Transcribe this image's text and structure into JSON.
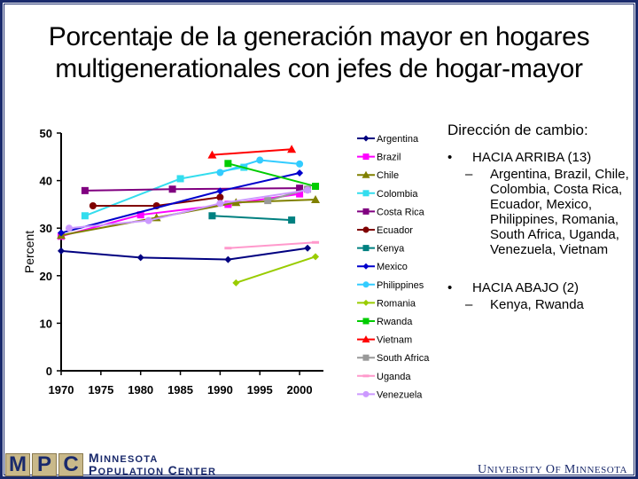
{
  "title_line1": "Porcentaje de la generación mayor en hogares",
  "title_line2": "multigenerationales con jefes de hogar-mayor",
  "notes": {
    "heading": "Dirección de cambio:",
    "up_label": "HACIA ARRIBA (13)",
    "up_countries": "Argentina, Brazil, Chile, Colombia, Costa Rica, Ecuador, Mexico, Philippines, Romania, South Africa, Uganda, Venezuela, Vietnam",
    "down_label": "HACIA ABAJO (2)",
    "down_countries": "Kenya, Rwanda",
    "bullet": "•",
    "dash": "–"
  },
  "footer": {
    "mpc_letters": [
      "M",
      "P",
      "C"
    ],
    "mpc_line1": "Minnesota",
    "mpc_line2": "Population Center",
    "university": "University of Minnesota"
  },
  "chart_data": {
    "type": "line",
    "title": "Porcentaje de la generación mayor en hogares multigenerationales con jefes de hogar-mayor",
    "xlabel": "",
    "ylabel": "Percent",
    "xlim": [
      1970,
      2003
    ],
    "ylim": [
      0,
      50
    ],
    "x_ticks": [
      1970,
      1975,
      1980,
      1985,
      1990,
      1995,
      2000
    ],
    "y_ticks": [
      0,
      10,
      20,
      30,
      40,
      50
    ],
    "grid": false,
    "legend_position": "right",
    "series": [
      {
        "name": "Argentina",
        "color": "#000080",
        "marker": "diamond",
        "points": [
          [
            1970,
            25.2
          ],
          [
            1980,
            23.8
          ],
          [
            1991,
            23.4
          ],
          [
            2001,
            25.8
          ]
        ]
      },
      {
        "name": "Brazil",
        "color": "#ff00ff",
        "marker": "square",
        "points": [
          [
            1970,
            28.3
          ],
          [
            1980,
            32.8
          ],
          [
            1991,
            35.0
          ],
          [
            2000,
            37.2
          ]
        ]
      },
      {
        "name": "Chile",
        "color": "#808000",
        "marker": "triangle",
        "points": [
          [
            1970,
            28.5
          ],
          [
            1982,
            32.2
          ],
          [
            1992,
            35.4
          ],
          [
            2002,
            36.0
          ]
        ]
      },
      {
        "name": "Colombia",
        "color": "#33ddee",
        "marker": "square",
        "points": [
          [
            1973,
            32.6
          ],
          [
            1985,
            40.4
          ],
          [
            1993,
            42.8
          ]
        ]
      },
      {
        "name": "Costa Rica",
        "color": "#800080",
        "marker": "square",
        "points": [
          [
            1973,
            37.9
          ],
          [
            1984,
            38.2
          ],
          [
            2000,
            38.4
          ]
        ]
      },
      {
        "name": "Ecuador",
        "color": "#800000",
        "marker": "circle",
        "points": [
          [
            1974,
            34.7
          ],
          [
            1982,
            34.7
          ],
          [
            1990,
            36.5
          ]
        ]
      },
      {
        "name": "Kenya",
        "color": "#008080",
        "marker": "square",
        "points": [
          [
            1989,
            32.6
          ],
          [
            1999,
            31.7
          ]
        ]
      },
      {
        "name": "Mexico",
        "color": "#0000cc",
        "marker": "diamond",
        "points": [
          [
            1970,
            29.0
          ],
          [
            1990,
            37.8
          ],
          [
            2000,
            41.6
          ]
        ]
      },
      {
        "name": "Philippines",
        "color": "#33ccff",
        "marker": "circle",
        "points": [
          [
            1990,
            41.7
          ],
          [
            1995,
            44.3
          ],
          [
            2000,
            43.5
          ]
        ]
      },
      {
        "name": "Romania",
        "color": "#99cc00",
        "marker": "diamond",
        "points": [
          [
            1992,
            18.5
          ],
          [
            2002,
            24.0
          ]
        ]
      },
      {
        "name": "Rwanda",
        "color": "#00cc00",
        "marker": "square",
        "points": [
          [
            1991,
            43.6
          ],
          [
            2002,
            38.8
          ]
        ]
      },
      {
        "name": "Vietnam",
        "color": "#ff0000",
        "marker": "triangle",
        "points": [
          [
            1989,
            45.4
          ],
          [
            1999,
            46.6
          ]
        ]
      },
      {
        "name": "South Africa",
        "color": "#999999",
        "marker": "square",
        "points": [
          [
            1996,
            35.8
          ],
          [
            2001,
            38.2
          ]
        ]
      },
      {
        "name": "Uganda",
        "color": "#ff99cc",
        "marker": "dash",
        "points": [
          [
            1991,
            25.8
          ],
          [
            2002,
            27.0
          ]
        ]
      },
      {
        "name": "Venezuela",
        "color": "#cc99ff",
        "marker": "circle",
        "points": [
          [
            1971,
            30.0
          ],
          [
            1981,
            31.6
          ],
          [
            1990,
            35.2
          ],
          [
            2001,
            38.0
          ]
        ]
      }
    ]
  }
}
